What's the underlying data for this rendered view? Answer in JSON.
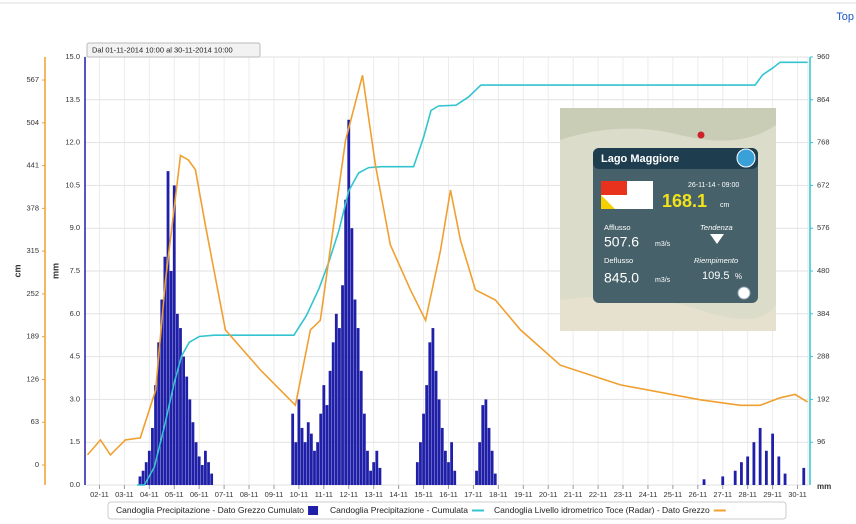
{
  "header": {
    "link": "Top"
  },
  "chart_data": {
    "type": "combo",
    "date_range": "Dal 01-11-2014 10:00 al 30-11-2014 10:00",
    "xlim": [
      1.42,
      30.42
    ],
    "xticks": [
      {
        "value": 2,
        "label": "02-11"
      },
      {
        "value": 3,
        "label": "03-11"
      },
      {
        "value": 4,
        "label": "04-11"
      },
      {
        "value": 5,
        "label": "05-11"
      },
      {
        "value": 6,
        "label": "06-11"
      },
      {
        "value": 7,
        "label": "07-11"
      },
      {
        "value": 8,
        "label": "08-11"
      },
      {
        "value": 9,
        "label": "09-11"
      },
      {
        "value": 10,
        "label": "10-11"
      },
      {
        "value": 11,
        "label": "11-11"
      },
      {
        "value": 12,
        "label": "12-11"
      },
      {
        "value": 13,
        "label": "13-11"
      },
      {
        "value": 14,
        "label": "14-11"
      },
      {
        "value": 15,
        "label": "15-11"
      },
      {
        "value": 16,
        "label": "16-11"
      },
      {
        "value": 17,
        "label": "17-11"
      },
      {
        "value": 18,
        "label": "18-11"
      },
      {
        "value": 19,
        "label": "19-11"
      },
      {
        "value": 20,
        "label": "20-11"
      },
      {
        "value": 21,
        "label": "21-11"
      },
      {
        "value": 22,
        "label": "22-11"
      },
      {
        "value": 23,
        "label": "23-11"
      },
      {
        "value": 24,
        "label": "24-11"
      },
      {
        "value": 25,
        "label": "25-11"
      },
      {
        "value": 26,
        "label": "26-11"
      },
      {
        "value": 27,
        "label": "27-11"
      },
      {
        "value": 28,
        "label": "28-11"
      },
      {
        "value": 29,
        "label": "29-11"
      },
      {
        "value": 30,
        "label": "30-11"
      }
    ],
    "ylabel": "mm",
    "ylim": [
      0,
      15
    ],
    "yticks": [
      {
        "value": 0,
        "label": "0.0"
      },
      1.5,
      {
        "value": 3,
        "label": "3.0"
      },
      4.5,
      {
        "value": 6,
        "label": "6.0"
      },
      7.5,
      {
        "value": 9,
        "label": "9.0"
      },
      10.5,
      {
        "value": 12,
        "label": "12.0"
      },
      13.5,
      {
        "value": 15,
        "label": "15.0"
      }
    ],
    "y2label": "mm",
    "y2lim": [
      0,
      960
    ],
    "y2ticks": [
      96,
      192,
      288,
      384,
      480,
      576,
      672,
      768,
      864,
      960
    ],
    "y3label": "cm",
    "y3lim": [
      -29.4,
      600.9
    ],
    "y3ticks": [
      0,
      63,
      126,
      189,
      252,
      315,
      378,
      441,
      504,
      567
    ],
    "grid": true,
    "series": [
      {
        "name": "Candoglia Precipitazione - Dato Grezzo Cumulato",
        "type": "bar",
        "axis": "y",
        "color": "#1f1fa8",
        "x": [
          3.625,
          3.75,
          3.875,
          4.0,
          4.125,
          4.25,
          4.375,
          4.5,
          4.625,
          4.75,
          4.875,
          5.0,
          5.125,
          5.25,
          5.375,
          5.5,
          5.625,
          5.75,
          5.875,
          6.0,
          6.125,
          6.25,
          6.375,
          6.5,
          9.75,
          9.875,
          10.0,
          10.125,
          10.25,
          10.375,
          10.5,
          10.625,
          10.75,
          10.875,
          11.0,
          11.125,
          11.25,
          11.375,
          11.5,
          11.625,
          11.75,
          11.875,
          12.0,
          12.125,
          12.25,
          12.375,
          12.5,
          12.625,
          12.75,
          12.875,
          13.0,
          13.125,
          13.25,
          14.75,
          14.875,
          15.0,
          15.125,
          15.25,
          15.375,
          15.5,
          15.625,
          15.75,
          15.875,
          16.0,
          16.125,
          16.25,
          17.125,
          17.25,
          17.375,
          17.5,
          17.625,
          17.75,
          17.875,
          26.25,
          27.0,
          27.5,
          27.75,
          28.0,
          28.25,
          28.5,
          28.75,
          29.0,
          29.25,
          29.5,
          30.25
        ],
        "values": [
          0.3,
          0.5,
          0.8,
          1.2,
          2.0,
          3.5,
          5.0,
          6.5,
          8.0,
          11.0,
          7.5,
          10.5,
          6.0,
          5.5,
          4.5,
          3.8,
          3.0,
          2.2,
          1.5,
          1.0,
          0.7,
          1.2,
          0.8,
          0.4,
          2.5,
          1.5,
          3.0,
          2.0,
          1.5,
          2.2,
          1.8,
          1.2,
          1.5,
          2.5,
          3.5,
          2.8,
          4.0,
          5.0,
          6.0,
          5.5,
          7.0,
          10.0,
          12.8,
          9.0,
          6.5,
          5.5,
          4.0,
          2.5,
          1.2,
          0.5,
          0.8,
          1.2,
          0.6,
          0.8,
          1.5,
          2.5,
          3.5,
          5.0,
          5.5,
          4.0,
          3.0,
          2.0,
          1.2,
          0.8,
          1.5,
          0.5,
          0.5,
          1.5,
          2.8,
          3.0,
          2.0,
          1.2,
          0.4,
          0.2,
          0.3,
          0.5,
          0.8,
          1.0,
          1.5,
          2.0,
          1.2,
          1.8,
          1.0,
          0.4,
          0.6
        ]
      },
      {
        "name": "Candoglia Precipitazione - Cumulata",
        "type": "line",
        "axis": "y2",
        "color": "#33c4cf",
        "x": [
          3.5,
          3.8,
          4.2,
          4.6,
          5.0,
          5.3,
          5.6,
          6.0,
          6.6,
          9.8,
          10.3,
          10.8,
          11.2,
          11.6,
          12.0,
          12.4,
          12.8,
          13.3,
          14.6,
          15.0,
          15.3,
          15.6,
          16.3,
          16.8,
          17.3,
          28.3,
          28.6,
          29.0,
          29.3,
          30.4
        ],
        "values": [
          0,
          0,
          40,
          130,
          230,
          290,
          320,
          333,
          336,
          336,
          380,
          440,
          500,
          570,
          660,
          700,
          712,
          714,
          714,
          780,
          840,
          850,
          852,
          870,
          897,
          897,
          920,
          935,
          948,
          948
        ]
      },
      {
        "name": "Candoglia Livello idrometrico Toce (Radar) - Dato Grezzo",
        "type": "line",
        "axis": "y3",
        "color": "#f0a030",
        "x": [
          1.52,
          2.04,
          2.44,
          3.04,
          3.64,
          4.25,
          4.65,
          5.25,
          5.57,
          5.85,
          6.25,
          7.05,
          8.46,
          9.86,
          10.46,
          10.86,
          11.87,
          12.55,
          13.07,
          13.67,
          14.47,
          15.08,
          15.68,
          16.08,
          16.48,
          17.08,
          17.88,
          18.89,
          20.49,
          22.9,
          26.1,
          27.7,
          28.5,
          29.3,
          29.9,
          30.4
        ],
        "values": [
          15,
          37,
          15,
          37,
          40,
          110,
          272,
          456,
          449,
          435,
          353,
          199,
          140,
          88,
          199,
          213,
          478,
          574,
          442,
          324,
          258,
          213,
          316,
          405,
          331,
          258,
          243,
          199,
          147,
          118,
          96,
          88,
          88,
          99,
          104,
          93
        ]
      }
    ],
    "inset": {
      "title": "Lago Maggiore",
      "timestamp": "26-11-14 - 09:00",
      "level": "168.1",
      "level_unit": "cm",
      "inflow_label": "Afflusso",
      "inflow": "507.6",
      "inflow_unit": "m3/s",
      "trend_label": "Tendenza",
      "outflow_label": "Deflusso",
      "outflow": "845.0",
      "outflow_unit": "m3/s",
      "fill_label": "Riempimento",
      "fill": "109.5",
      "fill_unit": "%"
    }
  }
}
